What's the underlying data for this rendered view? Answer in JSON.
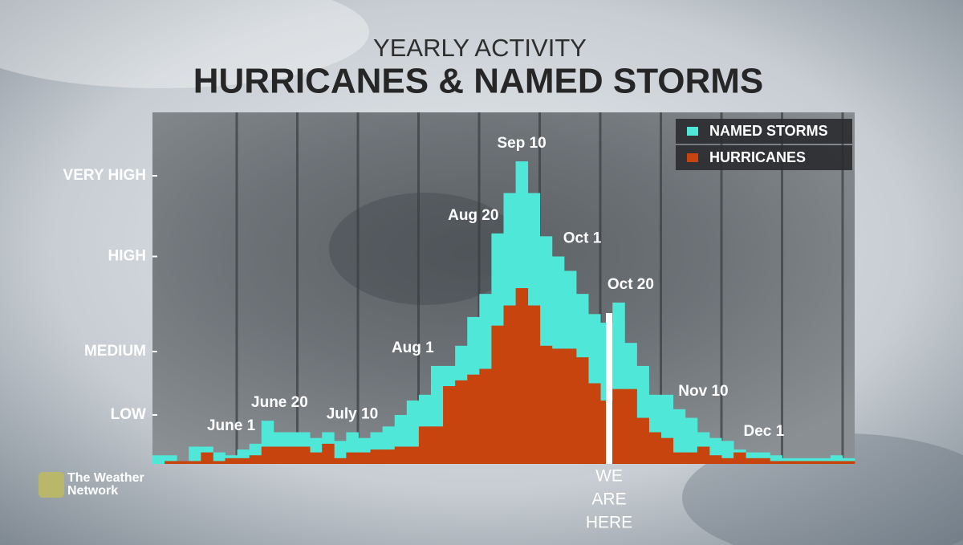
{
  "chart_data": {
    "type": "bar",
    "supertitle": "YEARLY ACTIVITY",
    "title": "HURRICANES & NAMED STORMS",
    "categories": [
      null,
      null,
      null,
      null,
      null,
      null,
      "June 1",
      null,
      null,
      null,
      "June 20",
      null,
      null,
      null,
      null,
      null,
      "July 10",
      null,
      null,
      null,
      null,
      "Aug 1",
      null,
      null,
      null,
      null,
      "Aug 20",
      null,
      null,
      null,
      "Sep 10",
      null,
      null,
      null,
      null,
      "Oct 1",
      null,
      null,
      null,
      "Oct 20",
      null,
      null,
      null,
      null,
      null,
      "Nov 10",
      null,
      null,
      null,
      null,
      "Dec 1",
      null,
      null,
      null,
      null,
      null,
      null,
      null
    ],
    "series": [
      {
        "name": "NAMED STORMS",
        "color": "#4fe8d8",
        "values": [
          3,
          3,
          1,
          6,
          6,
          4,
          3,
          5,
          7,
          15,
          11,
          11,
          11,
          9,
          11,
          8,
          11,
          9,
          11,
          13,
          17,
          22,
          24,
          34,
          34,
          41,
          51,
          59,
          80,
          94,
          105,
          94,
          79,
          72,
          67,
          59,
          52,
          49,
          56,
          42,
          34,
          24,
          24,
          19,
          16,
          11,
          9,
          8,
          5,
          4,
          4,
          3,
          2,
          2,
          2,
          2,
          3,
          2
        ]
      },
      {
        "name": "HURRICANES",
        "color": "#c8440e",
        "values": [
          0,
          1,
          1,
          1,
          4,
          1,
          2,
          2,
          3,
          6,
          6,
          6,
          6,
          4,
          7,
          2,
          4,
          4,
          5,
          5,
          6,
          6,
          13,
          13,
          27,
          29,
          31,
          33,
          48,
          55,
          61,
          55,
          41,
          40,
          40,
          37,
          28,
          22,
          26,
          26,
          16,
          11,
          9,
          4,
          4,
          6,
          3,
          2,
          4,
          2,
          2,
          1,
          1,
          1,
          1,
          1,
          1,
          1
        ]
      }
    ],
    "ylim": [
      0,
      122
    ],
    "yticks": [
      {
        "value": 17,
        "label": "LOW"
      },
      {
        "value": 39,
        "label": "MEDIUM"
      },
      {
        "value": 72,
        "label": "HIGH"
      },
      {
        "value": 100,
        "label": "VERY HIGH"
      }
    ],
    "legend": "top-right",
    "annotation_lines": [
      "WE",
      "ARE",
      "HERE"
    ]
  },
  "logo_lines": [
    "The Weather",
    "Network"
  ]
}
